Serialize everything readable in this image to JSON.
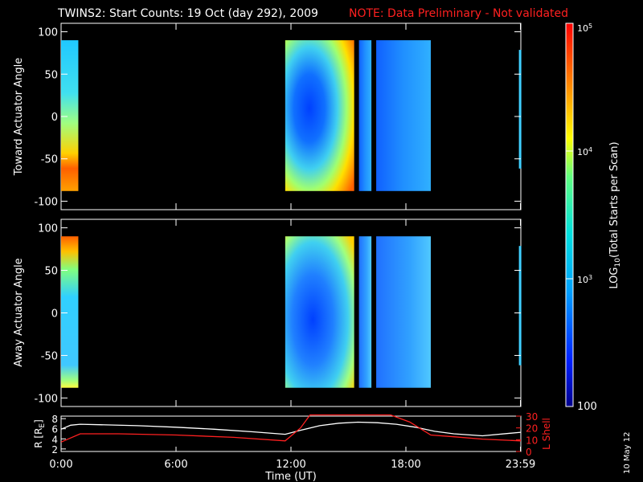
{
  "title": {
    "main": "TWINS2: Start Counts: 19 Oct (day 292), 2009",
    "note": "NOTE: Data Preliminary - Not validated",
    "note_color": "#ff2020"
  },
  "footer_date": "10 May 12",
  "chart_data": [
    {
      "type": "heatmap",
      "name": "toward",
      "ylabel": "Toward Actuator Angle",
      "yticks": [
        100,
        50,
        0,
        -50,
        -100
      ],
      "ylim": [
        -110,
        110
      ],
      "data_ylim": [
        -88,
        90
      ],
      "xlim_hours": [
        0,
        24
      ],
      "data_blocks_hours": [
        [
          0.0,
          0.9
        ],
        [
          11.7,
          15.3
        ],
        [
          15.55,
          16.2
        ],
        [
          16.45,
          19.3
        ]
      ],
      "black_gaps_hours": [
        [
          15.3,
          15.55
        ],
        [
          16.2,
          16.45
        ]
      ],
      "colorscale": "log10",
      "crange": [
        100,
        100000
      ]
    },
    {
      "type": "heatmap",
      "name": "away",
      "ylabel": "Away Actuator Angle",
      "yticks": [
        100,
        50,
        0,
        -50,
        -100
      ],
      "ylim": [
        -110,
        110
      ],
      "data_ylim": [
        -88,
        90
      ],
      "xlim_hours": [
        0,
        24
      ],
      "data_blocks_hours": [
        [
          0.0,
          0.9
        ],
        [
          11.7,
          15.3
        ],
        [
          15.55,
          16.2
        ],
        [
          16.45,
          19.3
        ]
      ],
      "black_gaps_hours": [
        [
          15.3,
          15.55
        ],
        [
          16.2,
          16.45
        ]
      ],
      "colorscale": "log10",
      "crange": [
        100,
        100000
      ]
    },
    {
      "type": "line",
      "name": "orbit",
      "ylabel_left": "R [R_E]",
      "ylabel_right": "L Shell",
      "yticks_left": [
        2,
        4,
        6,
        8
      ],
      "yticks_right": [
        0,
        10,
        20,
        30
      ],
      "ylim_left": [
        1.5,
        8.5
      ],
      "ylim_right": [
        0,
        30
      ],
      "xticks": [
        "0:00",
        "6:00",
        "12:00",
        "18:00",
        "23:59"
      ],
      "xtick_hours": [
        0,
        6,
        12,
        18,
        23.98
      ],
      "xlabel": "Time (UT)",
      "series": [
        {
          "color": "#ffffff",
          "axis": "left",
          "x": [
            0,
            0.5,
            1,
            2,
            4,
            6,
            8,
            10,
            11.7,
            12.5,
            13.5,
            14.5,
            15.5,
            16.5,
            17.5,
            18.5,
            19.5,
            20.5,
            22,
            24
          ],
          "y": [
            5.9,
            6.7,
            6.9,
            6.8,
            6.6,
            6.3,
            5.9,
            5.4,
            4.9,
            5.7,
            6.6,
            7.1,
            7.3,
            7.2,
            6.9,
            6.3,
            5.5,
            5.0,
            4.6,
            5.3
          ]
        },
        {
          "color": "#ff2020",
          "axis": "right",
          "x": [
            0,
            1,
            3,
            6,
            9,
            11.7,
            12.5,
            13.0,
            17.2,
            18.2,
            19.3,
            20.5,
            22,
            24
          ],
          "y": [
            8,
            15,
            15,
            14,
            12,
            9,
            20,
            31,
            31,
            25,
            14,
            12.5,
            10.5,
            9
          ]
        }
      ]
    }
  ],
  "colorbar": {
    "ticks": [
      "10^5",
      "10^4",
      "10^3",
      "100"
    ],
    "tick_values": [
      100000,
      10000,
      1000,
      100
    ],
    "label_prefix": "LOG",
    "label_sub": "10",
    "label_suffix": "(Total Starts per Scan)"
  }
}
